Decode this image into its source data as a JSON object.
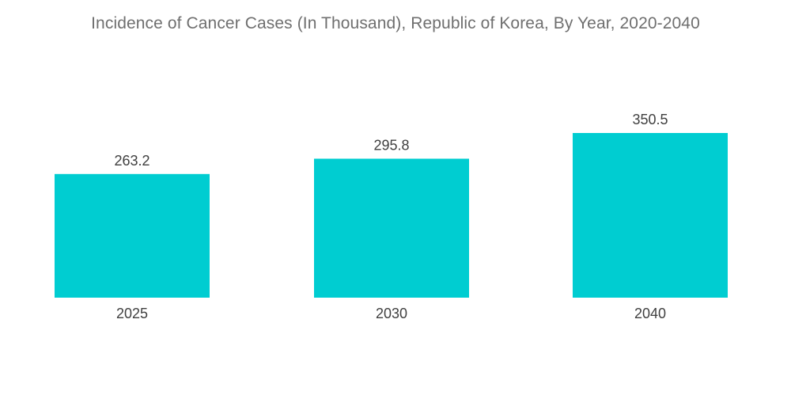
{
  "chart_data": {
    "type": "bar",
    "title": "Incidence of Cancer Cases (In Thousand), Republic of Korea, By Year, 2020-2040",
    "categories": [
      "2025",
      "2030",
      "2040"
    ],
    "values": [
      263.2,
      295.8,
      350.5
    ],
    "value_labels": [
      "263.2",
      "295.8",
      "350.5"
    ],
    "xlabel": "",
    "ylabel": "",
    "ylim": [
      0,
      350.5
    ],
    "grid": false,
    "legend": "none",
    "colors": {
      "bar": "#00cdd1",
      "title": "#6f6f6f",
      "text": "#3f3f3f"
    }
  }
}
